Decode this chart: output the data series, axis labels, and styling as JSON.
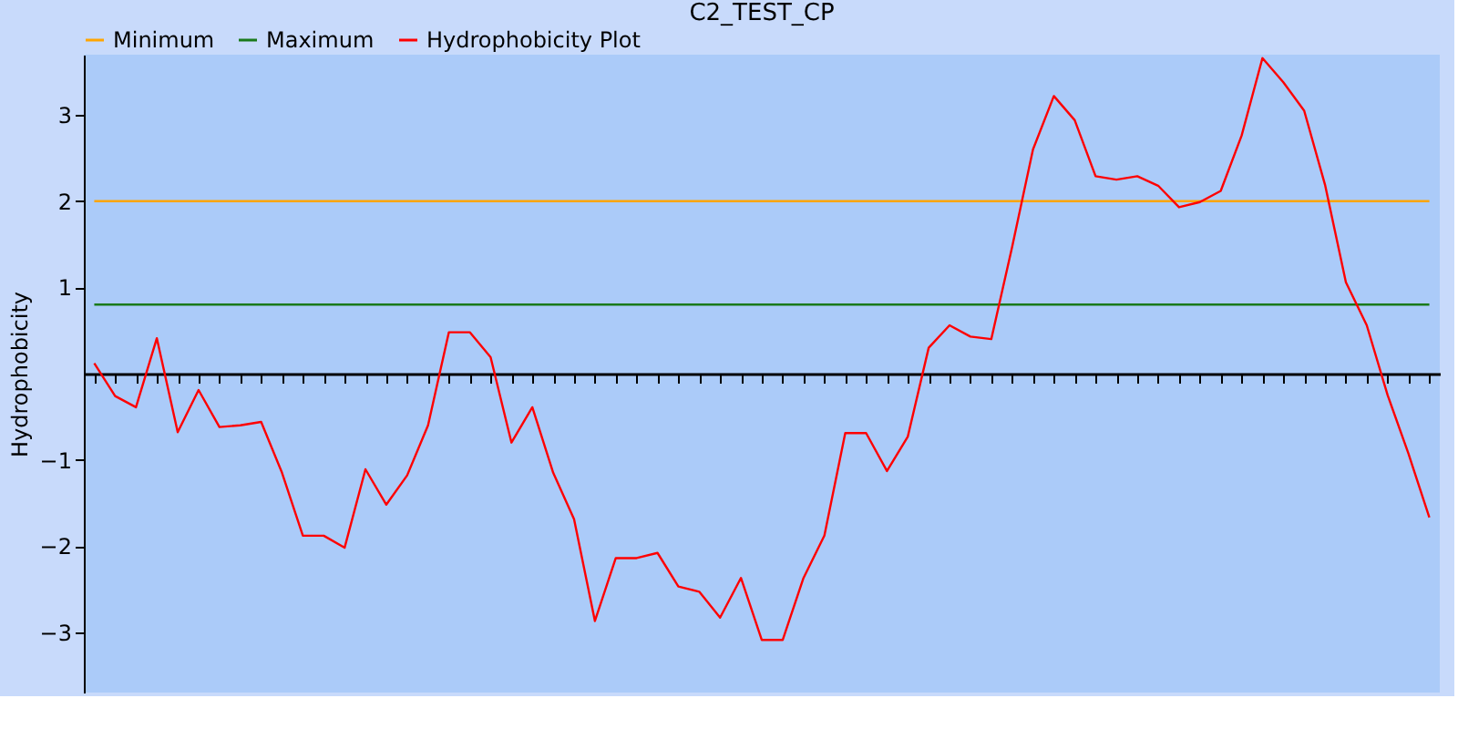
{
  "chart_data": {
    "type": "line",
    "title": "C2_TEST_CP",
    "ylabel": "Hydrophobicity",
    "categories": [
      null,
      null,
      null,
      null,
      null,
      null,
      null,
      null,
      null,
      null,
      null,
      null,
      null,
      null,
      null,
      null,
      null,
      null,
      null,
      null,
      null,
      null,
      null,
      null,
      null,
      null,
      null,
      null,
      null,
      null,
      null,
      null,
      null,
      null,
      null,
      null,
      null,
      null,
      null,
      null,
      null,
      null,
      null,
      null,
      null,
      null,
      null,
      null,
      null,
      null,
      null,
      null,
      null,
      null,
      null,
      null,
      null,
      null,
      null,
      null,
      null,
      null,
      null,
      null,
      null
    ],
    "series": [
      {
        "name": "Minimum",
        "color": "#ffa500",
        "values": [
          2,
          2,
          2,
          2,
          2,
          2,
          2,
          2,
          2,
          2,
          2,
          2,
          2,
          2,
          2,
          2,
          2,
          2,
          2,
          2,
          2,
          2,
          2,
          2,
          2,
          2,
          2,
          2,
          2,
          2,
          2,
          2,
          2,
          2,
          2,
          2,
          2,
          2,
          2,
          2,
          2,
          2,
          2,
          2,
          2,
          2,
          2,
          2,
          2,
          2,
          2,
          2,
          2,
          2,
          2,
          2,
          2,
          2,
          2,
          2,
          2,
          2,
          2,
          2,
          2
        ]
      },
      {
        "name": "Maximum",
        "color": "#1a7a1a",
        "values": [
          0.8,
          0.8,
          0.8,
          0.8,
          0.8,
          0.8,
          0.8,
          0.8,
          0.8,
          0.8,
          0.8,
          0.8,
          0.8,
          0.8,
          0.8,
          0.8,
          0.8,
          0.8,
          0.8,
          0.8,
          0.8,
          0.8,
          0.8,
          0.8,
          0.8,
          0.8,
          0.8,
          0.8,
          0.8,
          0.8,
          0.8,
          0.8,
          0.8,
          0.8,
          0.8,
          0.8,
          0.8,
          0.8,
          0.8,
          0.8,
          0.8,
          0.8,
          0.8,
          0.8,
          0.8,
          0.8,
          0.8,
          0.8,
          0.8,
          0.8,
          0.8,
          0.8,
          0.8,
          0.8,
          0.8,
          0.8,
          0.8,
          0.8,
          0.8,
          0.8,
          0.8,
          0.8,
          0.8,
          0.8,
          0.8
        ]
      },
      {
        "name": "Hydrophobicity Plot",
        "color": "#ff0000",
        "values": [
          0.12,
          -0.26,
          -0.39,
          0.41,
          -0.68,
          -0.19,
          -0.62,
          -0.6,
          -0.56,
          -1.15,
          -1.88,
          -1.88,
          -2.02,
          -1.11,
          -1.52,
          -1.18,
          -0.6,
          0.48,
          0.48,
          0.19,
          -0.8,
          -0.39,
          -1.15,
          -1.69,
          -2.87,
          -2.14,
          -2.14,
          -2.08,
          -2.47,
          -2.53,
          -2.83,
          -2.37,
          -3.09,
          -3.09,
          -2.37,
          -1.88,
          -0.69,
          -0.69,
          -1.13,
          -0.73,
          0.3,
          0.56,
          0.43,
          0.4,
          1.47,
          2.6,
          3.22,
          2.94,
          2.29,
          2.25,
          2.29,
          2.18,
          1.93,
          1.99,
          2.12,
          2.76,
          3.66,
          3.38,
          3.05,
          2.19,
          1.06,
          0.56,
          -0.25,
          -0.93,
          -1.67
        ]
      }
    ],
    "ylim": [
      -3.7,
      3.7
    ],
    "yticks": [
      -3,
      -2,
      -1,
      1,
      2,
      3
    ],
    "legend": "top",
    "tick_labels": "y"
  }
}
